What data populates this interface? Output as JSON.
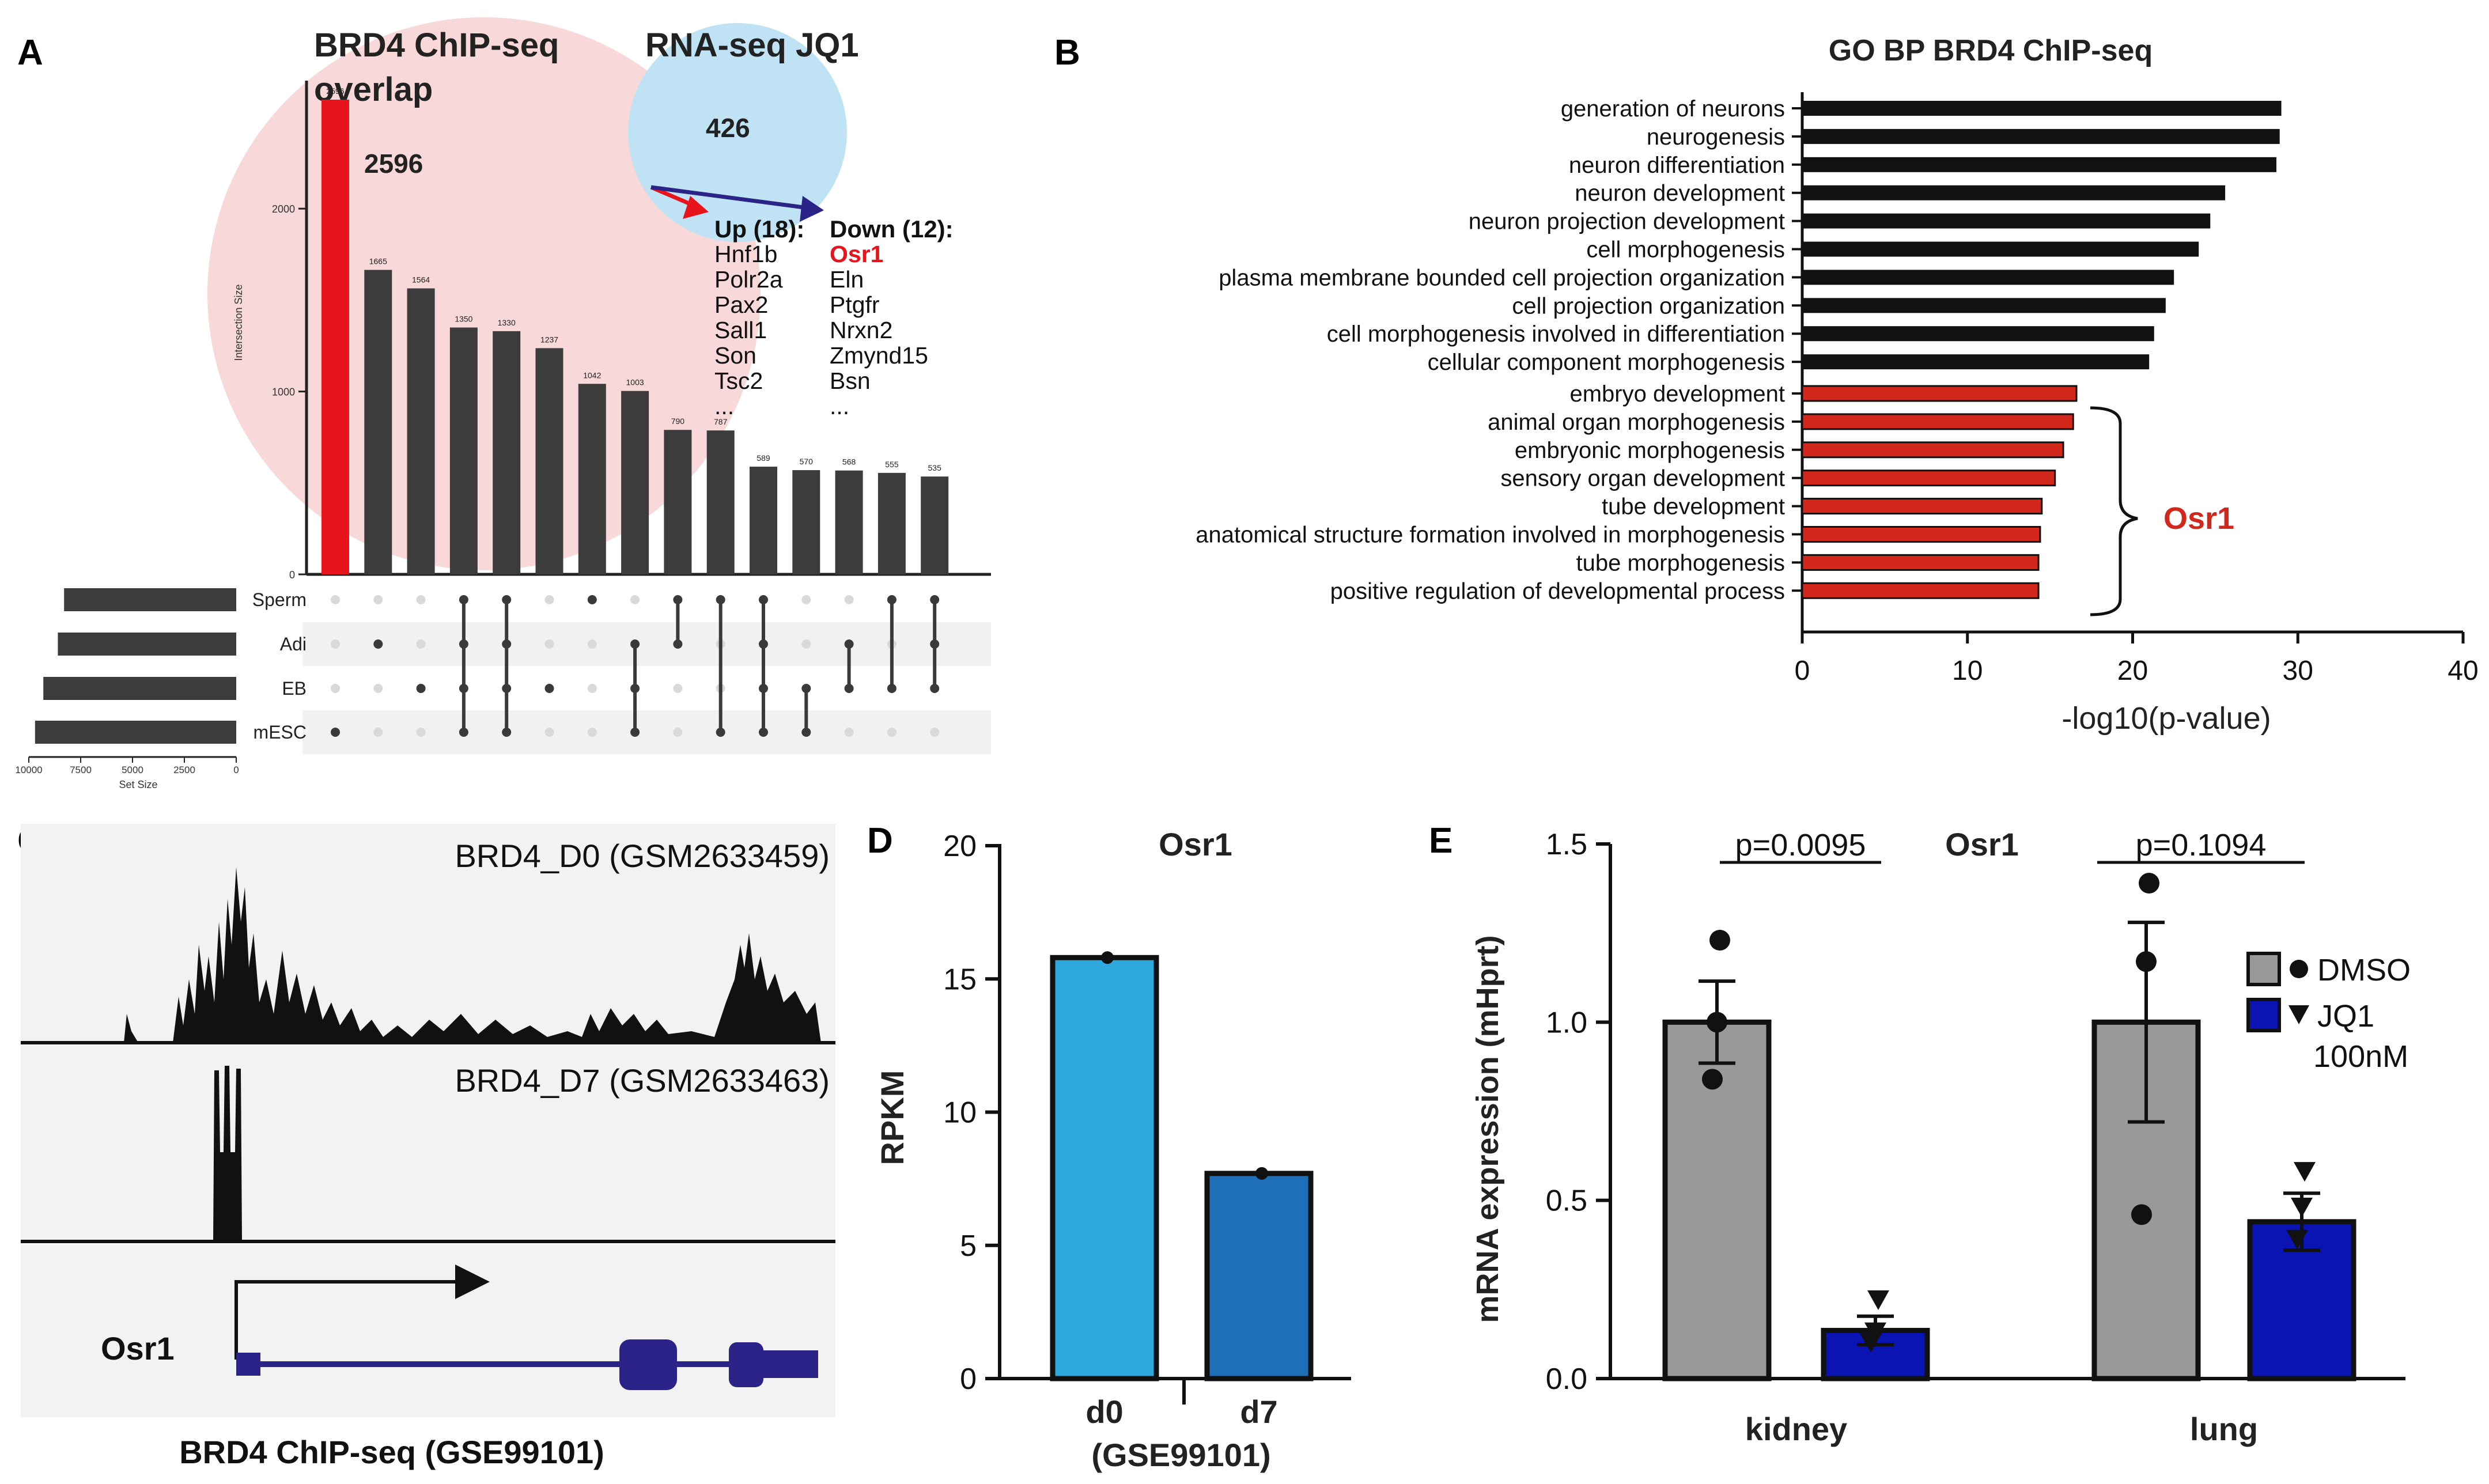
{
  "panels": {
    "A": {
      "letter": "A",
      "title_line1": "BRD4 ChIP-seq",
      "title_line2": "overlap",
      "rna_title": "RNA-seq JQ1",
      "rna_count": "426",
      "overlap_label": "2596",
      "up_title": "Up (18):",
      "up_genes": [
        "Hnf1b",
        "Polr2a",
        "Pax2",
        "Sall1",
        "Son",
        "Tsc2",
        "..."
      ],
      "down_title": "Down (12):",
      "down_genes": [
        "Osr1",
        "Eln",
        "Ptgfr",
        "Nrxn2",
        "Zmynd15",
        "Bsn",
        "..."
      ],
      "y_axis_label": "Intersection Size",
      "set_size_label": "Set Size"
    },
    "B": {
      "letter": "B"
    },
    "C": {
      "letter": "C",
      "track1": "BRD4_D0 (GSM2633459)",
      "track2": "BRD4_D7 (GSM2633463)",
      "gene": "Osr1",
      "caption": "BRD4 ChIP-seq (GSE99101)"
    },
    "D": {
      "letter": "D",
      "xaxis_note": "(GSE99101)"
    },
    "E": {
      "letter": "E",
      "pvals": [
        "p=0.0095",
        "p=0.1094"
      ],
      "legend": [
        "DMSO",
        "JQ1",
        "100nM"
      ]
    }
  },
  "colors": {
    "red": "#e8141c",
    "dark_bar": "#3c3c3c",
    "pink_circle": "#f8d8d8",
    "blue_circle": "#bfe3f5",
    "navy": "#2b2387",
    "go_red": "#d2281c",
    "d0": "#2fa8e0",
    "d7": "#1f6eb8",
    "grey_bar": "#999999",
    "jq1": "#0a14b4"
  },
  "chart_data": [
    {
      "id": "A-upset",
      "type": "bar",
      "title": "BRD4 ChIP-seq overlap",
      "ylabel": "Intersection Size",
      "ylim": [
        0,
        2700
      ],
      "yticks": [
        0,
        1000,
        2000
      ],
      "values": [
        2596,
        1665,
        1564,
        1350,
        1330,
        1237,
        1042,
        1003,
        790,
        787,
        589,
        570,
        568,
        555,
        535
      ],
      "highlight_index": 0,
      "sets": [
        "Sperm",
        "Adi",
        "EB",
        "mESC"
      ],
      "set_sizes": [
        8300,
        8600,
        9300,
        9700
      ],
      "set_size_ticks": [
        "10000",
        "7500",
        "5000",
        "2500",
        "0"
      ],
      "membership": [
        [
          3
        ],
        [
          1
        ],
        [
          2
        ],
        [
          0,
          1,
          2,
          3
        ],
        [
          0,
          1,
          2,
          3
        ],
        [
          2
        ],
        [
          0
        ],
        [
          1,
          2,
          3
        ],
        [
          0,
          1
        ],
        [
          0,
          3
        ],
        [
          0,
          1,
          2,
          3
        ],
        [
          2,
          3
        ],
        [
          1,
          2
        ],
        [
          0,
          2
        ],
        [
          0,
          1,
          2
        ]
      ]
    },
    {
      "id": "B-go",
      "type": "bar",
      "orientation": "horizontal",
      "title": "GO BP BRD4 ChIP-seq",
      "xlabel": "-log10(p-value)",
      "xlim": [
        0,
        40
      ],
      "xticks": [
        0,
        10,
        20,
        30,
        40
      ],
      "categories": [
        "generation of neurons",
        "neurogenesis",
        "neuron differentiation",
        "neuron development",
        "neuron projection development",
        "cell morphogenesis",
        "plasma membrane bounded cell projection organization",
        "cell projection organization",
        "cell morphogenesis involved in differentiation",
        "cellular component morphogenesis",
        "embryo development",
        "animal organ morphogenesis",
        "embryonic morphogenesis",
        "sensory organ development",
        "tube development",
        "anatomical structure formation involved in morphogenesis",
        "tube morphogenesis",
        "positive regulation of developmental process"
      ],
      "values": [
        29.0,
        28.9,
        28.7,
        25.6,
        24.7,
        24.0,
        22.5,
        22.0,
        21.3,
        21.0,
        16.6,
        16.4,
        15.8,
        15.3,
        14.5,
        14.4,
        14.3,
        14.3
      ],
      "bracket_label": "Osr1"
    },
    {
      "id": "D-rpkm",
      "type": "bar",
      "title": "Osr1",
      "ylabel": "RPKM",
      "ylim": [
        0,
        20
      ],
      "yticks": [
        0,
        5,
        10,
        15,
        20
      ],
      "categories": [
        "d0",
        "d7"
      ],
      "values": [
        15.8,
        7.7
      ]
    },
    {
      "id": "E-mrna",
      "type": "bar",
      "title": "Osr1",
      "ylabel": "mRNA expression (mHprt)",
      "ylim": [
        0,
        1.5
      ],
      "yticks": [
        "0.0",
        "0.5",
        "1.0",
        "1.5"
      ],
      "groups": [
        "kidney",
        "lung"
      ],
      "series": [
        {
          "name": "DMSO",
          "means": [
            1.0,
            1.0
          ],
          "sem": [
            0.115,
            0.28
          ],
          "points": [
            [
              1.23,
              1.0,
              0.84
            ],
            [
              1.39,
              1.17,
              0.46
            ]
          ]
        },
        {
          "name": "JQ1",
          "means": [
            0.135,
            0.44
          ],
          "sem": [
            0.04,
            0.08
          ],
          "points": [
            [
              0.22,
              0.13,
              0.1
            ],
            [
              0.58,
              0.48,
              0.39
            ]
          ]
        }
      ]
    }
  ]
}
